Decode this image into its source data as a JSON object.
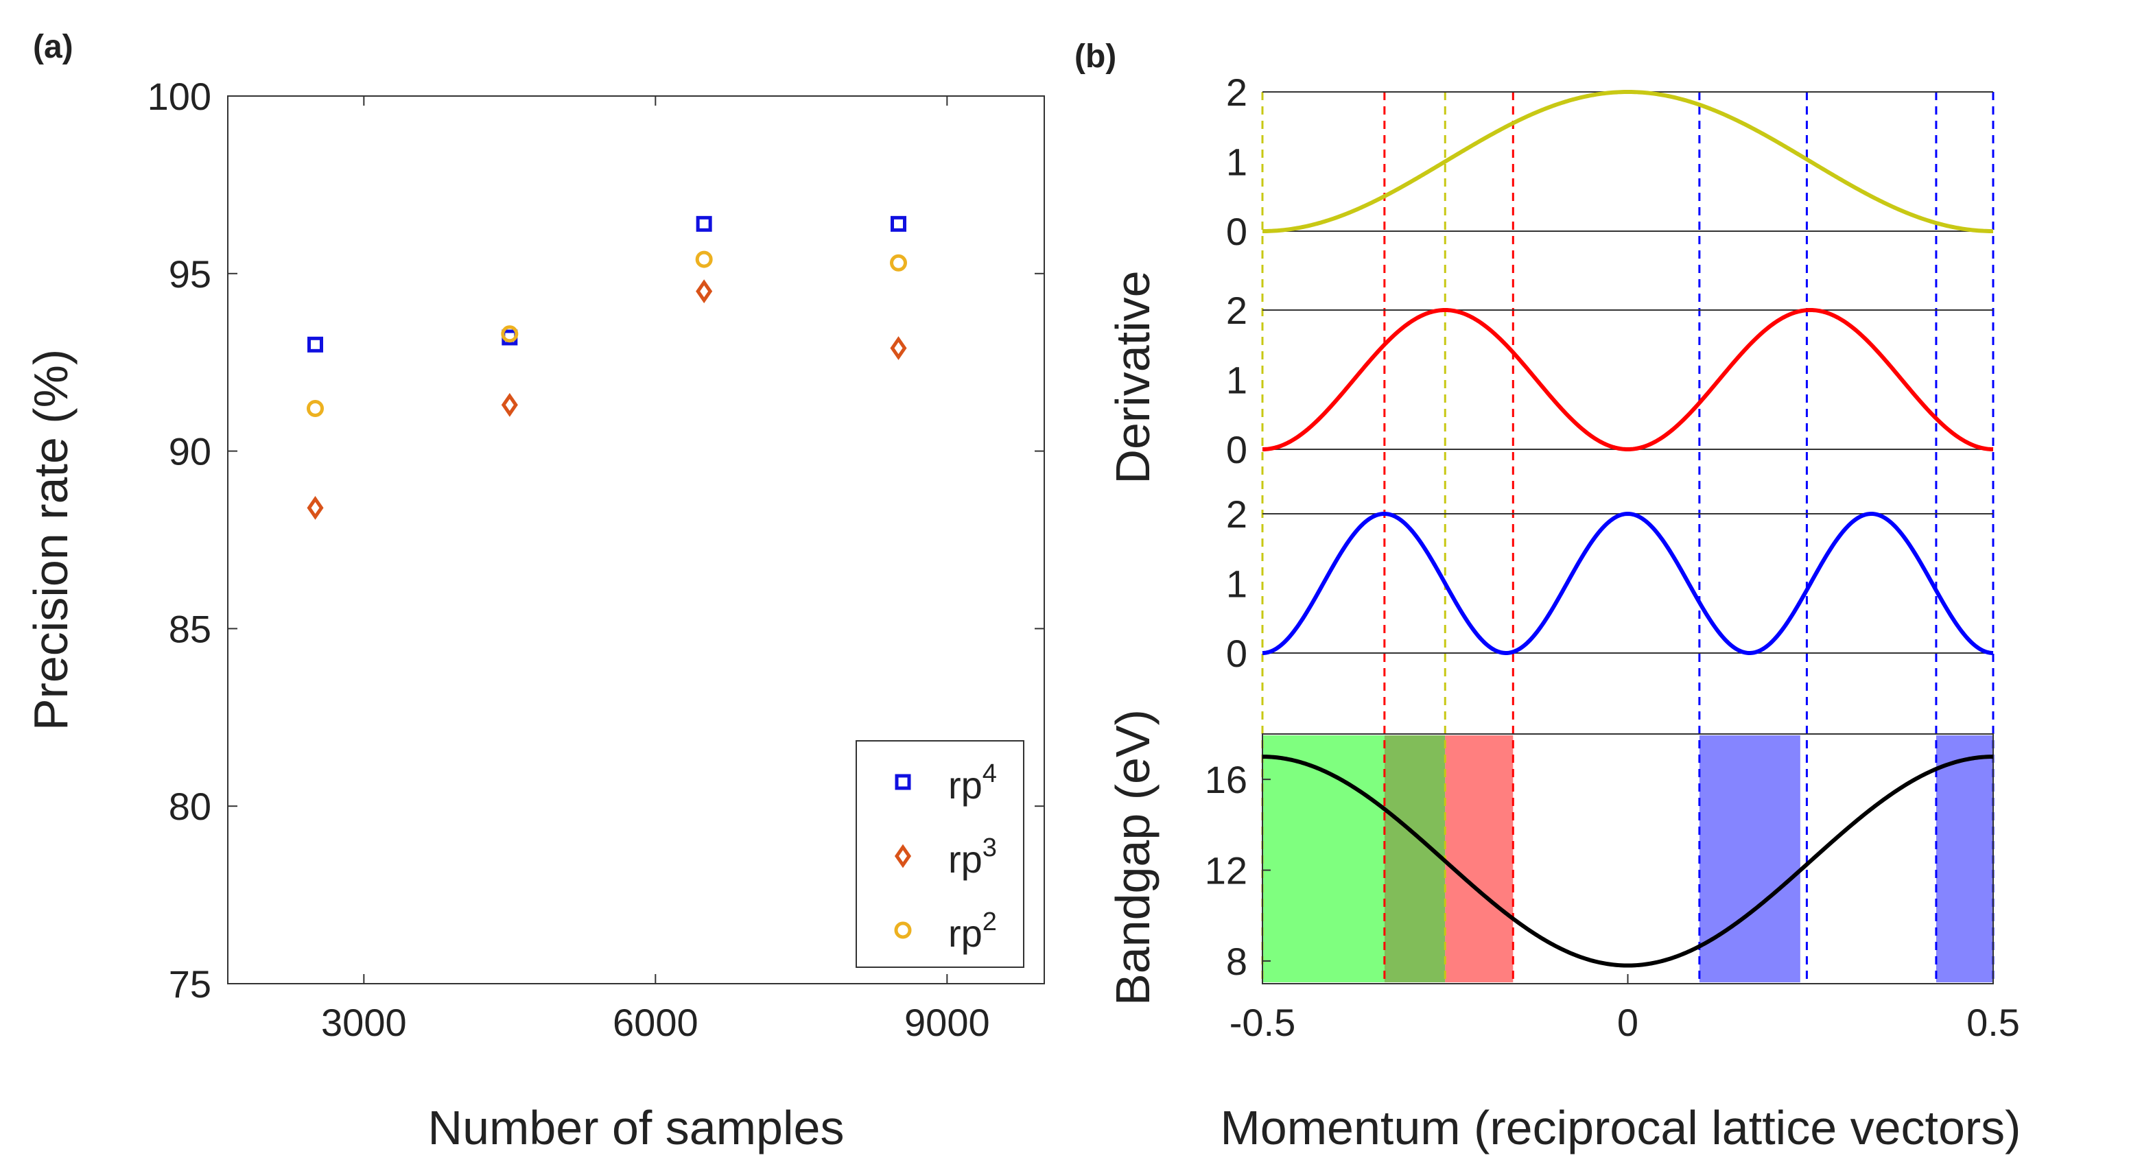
{
  "chart_data": [
    {
      "panel": "(a)",
      "type": "scatter",
      "xlabel": "Number of samples",
      "ylabel": "Precision rate (%)",
      "xlim": [
        1600,
        10000
      ],
      "ylim": [
        75,
        100
      ],
      "xticks": [
        3000,
        6000,
        9000
      ],
      "yticks": [
        75,
        80,
        85,
        90,
        95,
        100
      ],
      "legend_position": "bottom-right",
      "series": [
        {
          "name": "rp",
          "sup": "4",
          "marker": "square",
          "color": "#1010e0",
          "x": [
            2500,
            4500,
            6500,
            8500
          ],
          "y": [
            93.0,
            93.2,
            96.4,
            96.4
          ]
        },
        {
          "name": "rp",
          "sup": "3",
          "marker": "diamond",
          "color": "#d95319",
          "x": [
            2500,
            4500,
            6500,
            8500
          ],
          "y": [
            88.4,
            91.3,
            94.5,
            92.9
          ]
        },
        {
          "name": "rp",
          "sup": "2",
          "marker": "circle",
          "color": "#edb120",
          "x": [
            2500,
            4500,
            6500,
            8500
          ],
          "y": [
            91.2,
            93.3,
            95.4,
            95.3
          ]
        }
      ]
    },
    {
      "panel": "(b)",
      "type": "line",
      "xlabel": "Momentum (reciprocal lattice vectors)",
      "xlim": [
        -0.5,
        0.5
      ],
      "xticks": [
        "-0.5",
        "0",
        "0.5"
      ],
      "derivative_label": "Derivative",
      "bandgap_label": "Bandgap (eV)",
      "derivative_subplots": [
        {
          "color": "#c8c814",
          "function": "1 + cos(2*pi*k)",
          "ylim": [
            0,
            2
          ],
          "yticks": [
            0,
            1,
            2
          ]
        },
        {
          "color": "#ff0000",
          "function": "1 - cos(4*pi*k)",
          "ylim": [
            0,
            2
          ],
          "yticks": [
            0,
            1,
            2
          ]
        },
        {
          "color": "#0000ff",
          "function": "1 + cos(6*pi*k)",
          "ylim": [
            0,
            2
          ],
          "yticks": [
            0,
            1,
            2
          ]
        }
      ],
      "bandgap": {
        "color": "#000000",
        "function": "12.4 - 4.6*cos(2*pi*k)",
        "ylim": [
          7,
          18
        ],
        "yticks": [
          8,
          12,
          16
        ],
        "regions": [
          {
            "x0": -0.5,
            "x1": -0.333,
            "color": "#00ff00",
            "opacity": 0.5
          },
          {
            "x0": -0.333,
            "x1": -0.25,
            "color": "#3d9a00",
            "opacity": 0.65
          },
          {
            "x0": -0.25,
            "x1": -0.157,
            "color": "#ff0000",
            "opacity": 0.5
          },
          {
            "x0": 0.098,
            "x1": 0.236,
            "color": "#0000ff",
            "opacity": 0.48
          },
          {
            "x0": 0.422,
            "x1": 0.5,
            "color": "#0000ff",
            "opacity": 0.48
          }
        ]
      },
      "vlines": [
        {
          "x": -0.5,
          "color": "#c8c814"
        },
        {
          "x": -0.25,
          "color": "#c8c814"
        },
        {
          "x": -0.333,
          "color": "#ff0000"
        },
        {
          "x": -0.157,
          "color": "#ff0000"
        },
        {
          "x": 0.098,
          "color": "#0000ff"
        },
        {
          "x": 0.245,
          "color": "#0000ff"
        },
        {
          "x": 0.422,
          "color": "#0000ff"
        },
        {
          "x": 0.5,
          "color": "#0000ff"
        }
      ]
    }
  ]
}
